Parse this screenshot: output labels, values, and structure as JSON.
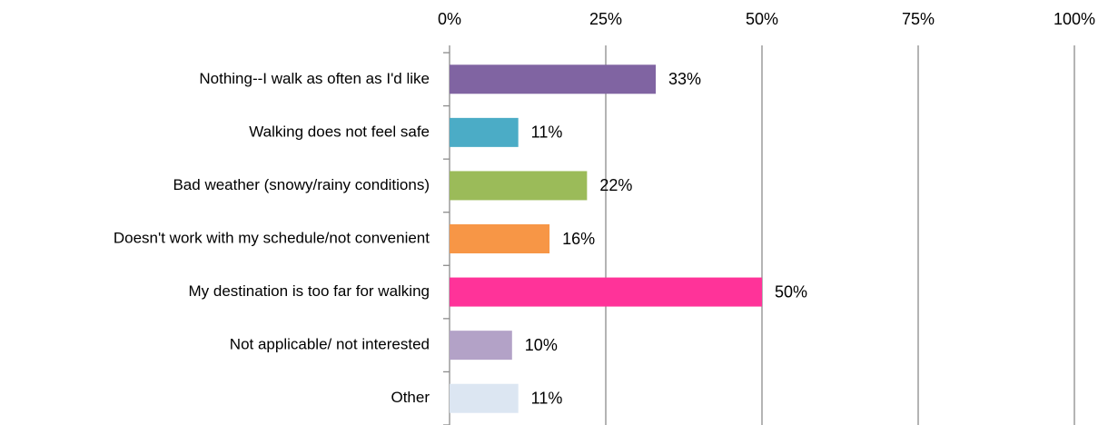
{
  "chart_data": {
    "type": "bar",
    "orientation": "horizontal",
    "categories": [
      "Nothing--I walk as often as I'd like",
      "Walking does not feel safe",
      "Bad weather (snowy/rainy conditions)",
      "Doesn't work with my schedule/not convenient",
      "My destination is too far for walking",
      "Not applicable/ not interested",
      "Other"
    ],
    "values": [
      33,
      11,
      22,
      16,
      50,
      10,
      11
    ],
    "value_labels": [
      "33%",
      "11%",
      "22%",
      "16%",
      "50%",
      "10%",
      "11%"
    ],
    "colors": [
      "#8064a2",
      "#4bacc6",
      "#9bbb59",
      "#f79646",
      "#ff3399",
      "#b3a2c7",
      "#dce6f2"
    ],
    "xlim": [
      0,
      100
    ],
    "xticks": [
      {
        "value": 0,
        "label": "0%"
      },
      {
        "value": 25,
        "label": "25%"
      },
      {
        "value": 50,
        "label": "50%"
      },
      {
        "value": 75,
        "label": "75%"
      },
      {
        "value": 100,
        "label": "100%"
      }
    ],
    "grid": true
  }
}
